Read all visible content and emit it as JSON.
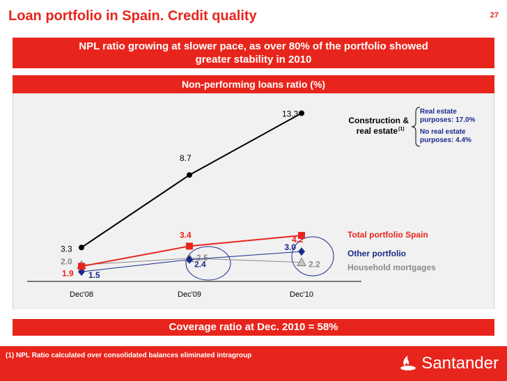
{
  "header": {
    "title": "Loan portfolio in Spain. Credit quality",
    "page_number": "27"
  },
  "headline": {
    "line1": "NPL ratio growing at slower pace, as over 80% of the portfolio showed",
    "line2": "greater stability in 2010"
  },
  "panel": {
    "title": "Non-performing loans ratio (%)"
  },
  "coverage_text": "Coverage ratio at Dec. 2010 = 58%",
  "footnote": "(1) NPL Ratio calculated over consolidated balances eliminated intragroup",
  "logo": {
    "text": "Santander",
    "icon": "flame-icon"
  },
  "colors": {
    "brand_red": "#e8251c",
    "construction": "#000000",
    "total": "#e8251c",
    "other": "#1a2a8c",
    "household": "#8a8a8a"
  },
  "chart_data": {
    "type": "line",
    "categories": [
      "Dec'08",
      "Dec'09",
      "Dec'10"
    ],
    "ylim": [
      0,
      14
    ],
    "grid": false,
    "series": [
      {
        "key": "construction",
        "name": "Construction & real estate",
        "name_line1": "Construction &",
        "name_line2": "real estate",
        "name_superscript": "(1)",
        "values": [
          3.3,
          8.7,
          13.3
        ],
        "labels": [
          "3.3",
          "8.7",
          "13.3"
        ],
        "color": "#000000",
        "marker": "circle"
      },
      {
        "key": "total",
        "name": "Total portfolio Spain",
        "values": [
          1.9,
          3.4,
          4.2
        ],
        "labels": [
          "1.9",
          "3.4",
          "4.2"
        ],
        "color": "#e8251c",
        "marker": "square"
      },
      {
        "key": "other",
        "name": "Other portfolio",
        "values": [
          1.5,
          2.4,
          3.0
        ],
        "labels": [
          "1.5",
          "2.4",
          "3.0"
        ],
        "color": "#1a2a8c",
        "marker": "diamond"
      },
      {
        "key": "household",
        "name": "Household mortgages",
        "values": [
          2.0,
          2.5,
          2.2
        ],
        "labels": [
          "2.0",
          "2.5",
          "2.2"
        ],
        "color": "#8a8a8a",
        "marker": "triangle"
      }
    ],
    "annotations": [
      "Real estate purposes: 17.0%",
      "No real estate purposes: 4.4%"
    ],
    "annotation_lines": [
      [
        "Real estate",
        "purposes: 17.0%"
      ],
      [
        "No real estate",
        "purposes: 4.4%"
      ]
    ]
  }
}
